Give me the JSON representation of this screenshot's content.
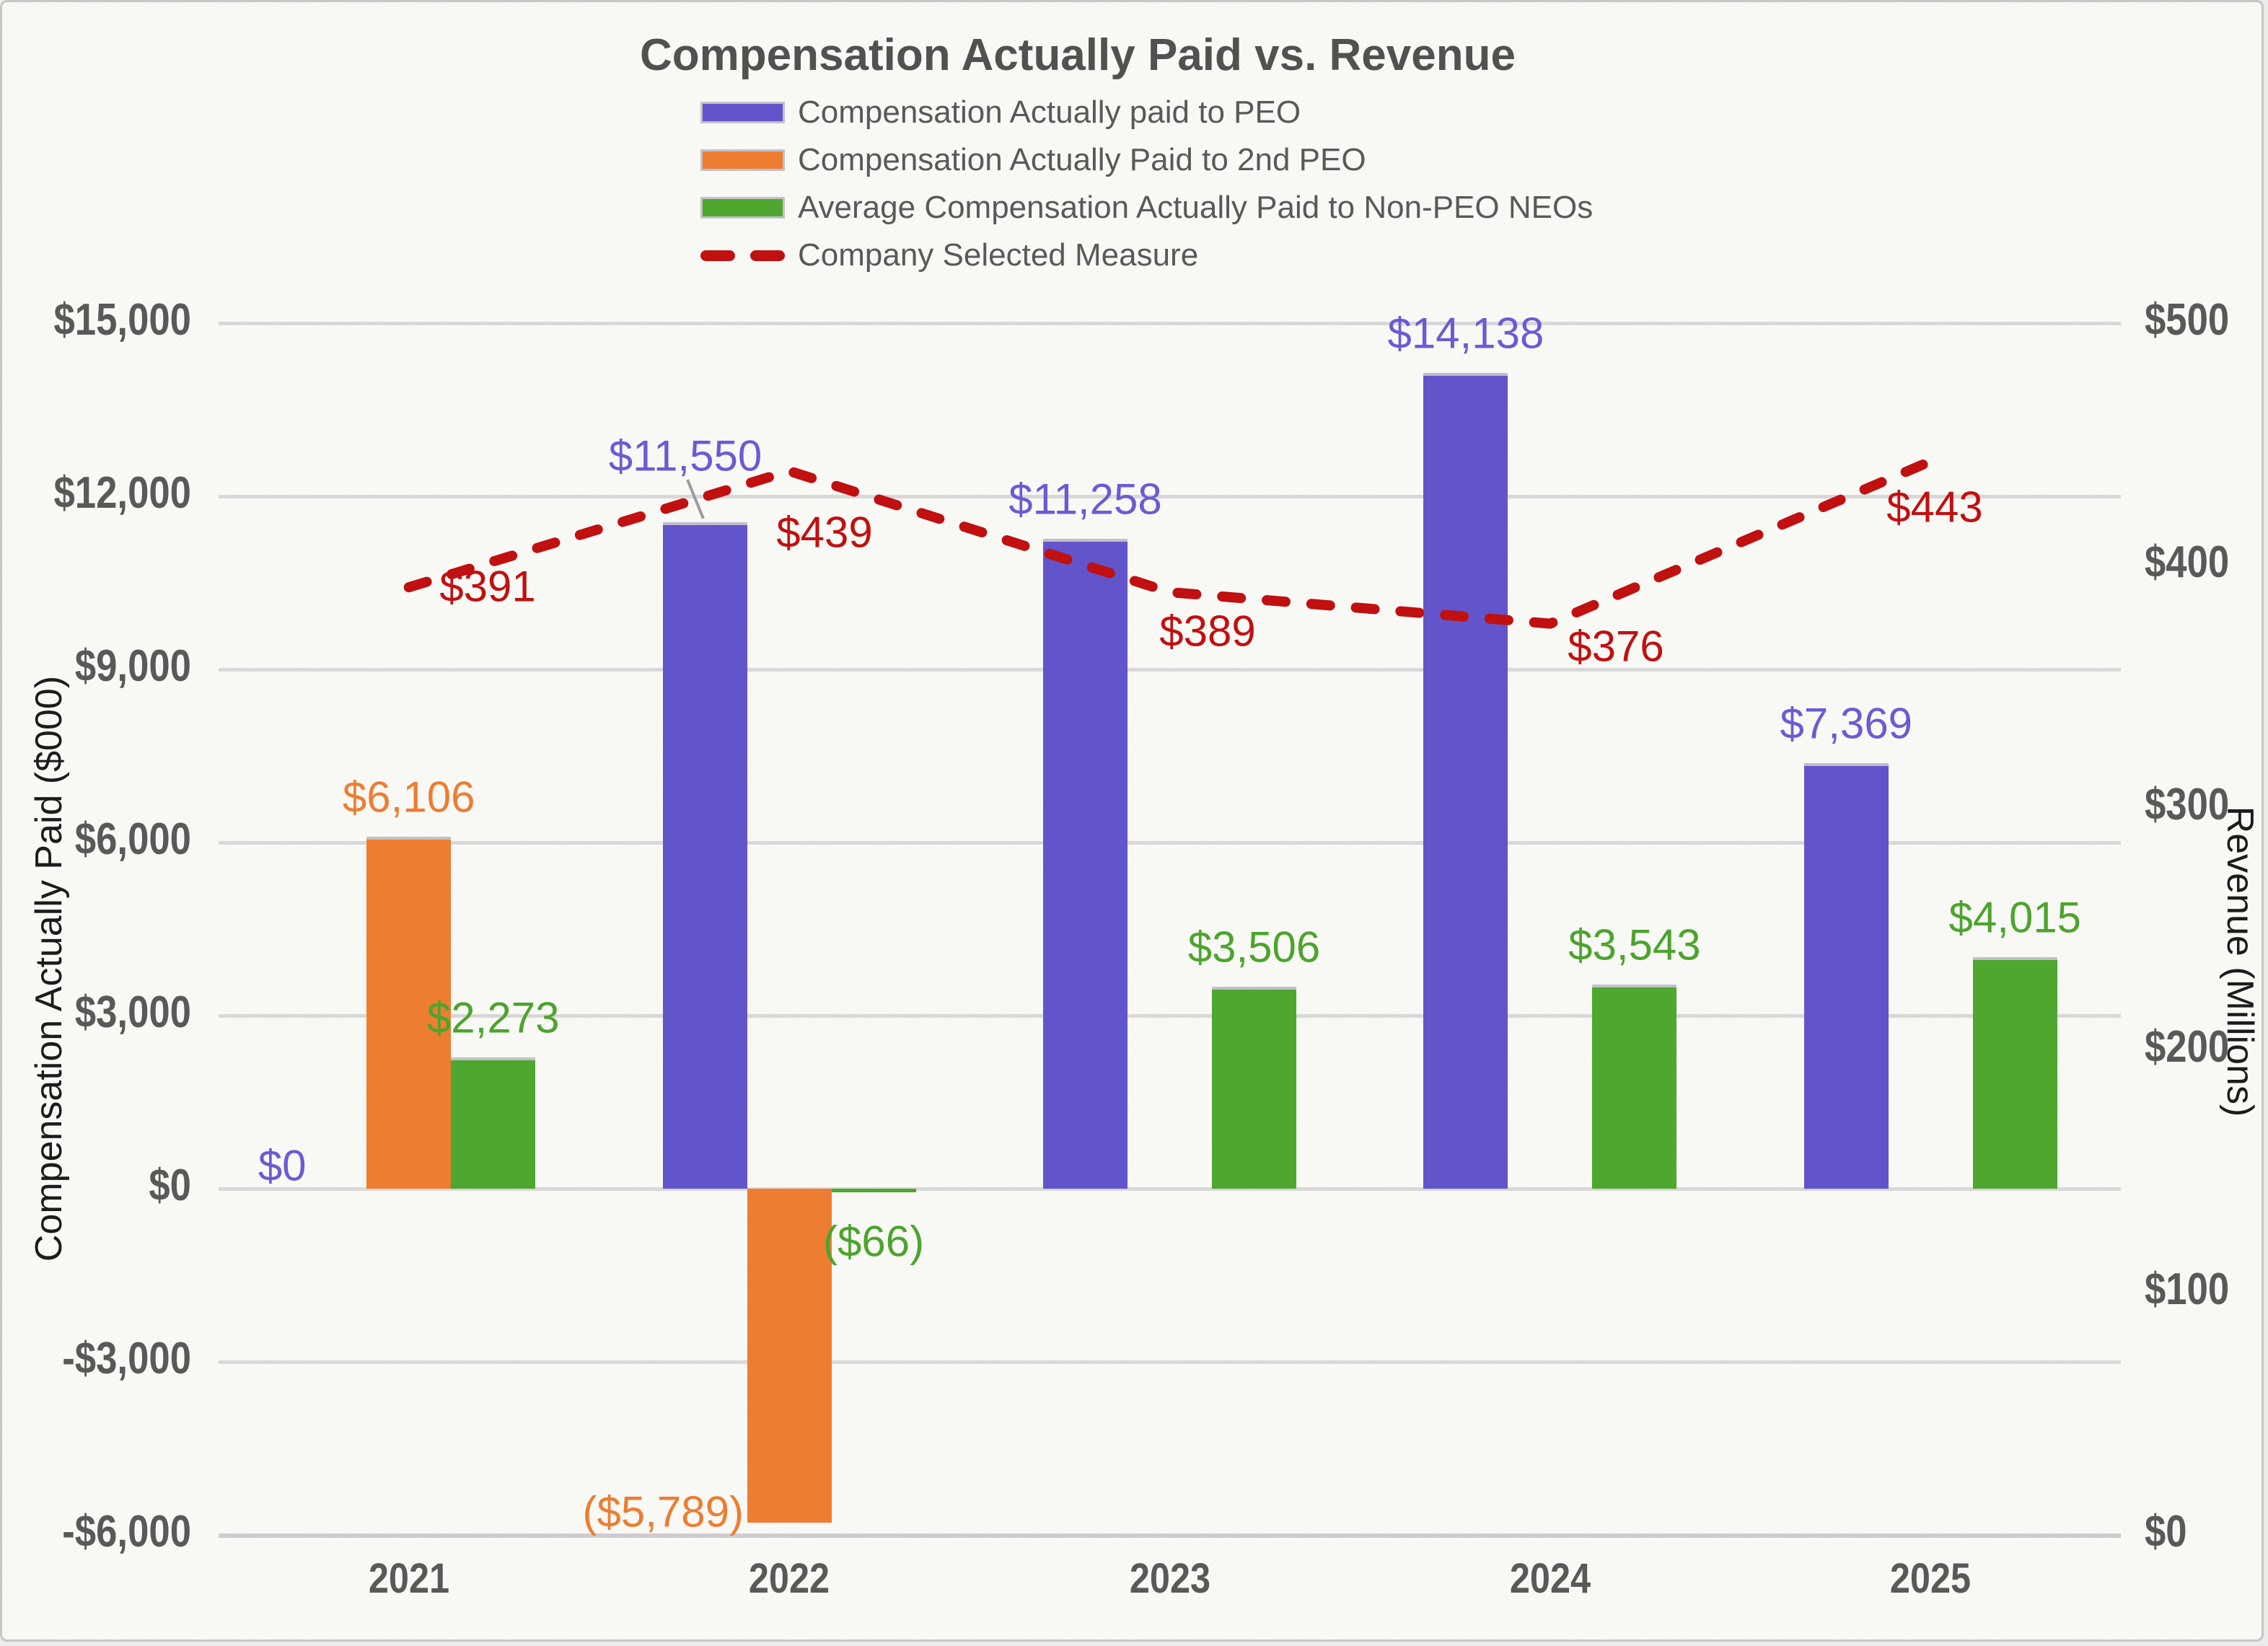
{
  "chart_data": {
    "type": "bar",
    "title": "Compensation Actually Paid vs. Revenue",
    "categories": [
      "2021",
      "2022",
      "2023",
      "2024",
      "2025"
    ],
    "series": [
      {
        "name": "Compensation Actually paid to PEO",
        "type": "bar",
        "axis": "left",
        "color": "#6254CA",
        "label_color": "#6A5BD4",
        "values": [
          0,
          11550,
          11258,
          14138,
          7369
        ],
        "value_labels": [
          "$0",
          "$11,550",
          "$11,258",
          "$14,138",
          "$7,369"
        ]
      },
      {
        "name": "Compensation Actually Paid to 2nd PEO",
        "type": "bar",
        "axis": "left",
        "color": "#ED7D31",
        "label_color": "#ED7D31",
        "values": [
          6106,
          -5789,
          null,
          null,
          null
        ],
        "value_labels": [
          "$6,106",
          "($5,789)",
          null,
          null,
          null
        ]
      },
      {
        "name": "Average Compensation Actually Paid to Non-PEO NEOs",
        "type": "bar",
        "axis": "left",
        "color": "#4EA72F",
        "label_color": "#4CA42D",
        "values": [
          2273,
          -66,
          3506,
          3543,
          4015
        ],
        "value_labels": [
          "$2,273",
          "($66)",
          "$3,506",
          "$3,543",
          "$4,015"
        ]
      },
      {
        "name": "Company Selected Measure",
        "type": "dashed_line",
        "axis": "right",
        "color": "#C01010",
        "label_color": "#C01010",
        "values": [
          391,
          439,
          389,
          376,
          443
        ],
        "value_labels": [
          "$391",
          "$439",
          "$389",
          "$376",
          "$443"
        ]
      }
    ],
    "left_axis": {
      "title": "Compensation Actually Paid ($000)",
      "min": -6000,
      "max": 15000,
      "step": 3000,
      "tick_values": [
        15000,
        12000,
        9000,
        6000,
        3000,
        0,
        -3000,
        -6000
      ],
      "tick_labels": [
        "$15,000",
        "$12,000",
        "$9,000",
        "$6,000",
        "$3,000",
        "$0",
        "-$3,000",
        "-$6,000"
      ]
    },
    "right_axis": {
      "title": "Revenue (Millions)",
      "min": 0,
      "max": 500,
      "step": 100,
      "tick_values": [
        500,
        400,
        300,
        200,
        100,
        0
      ],
      "tick_labels": [
        "$500",
        "$400",
        "$300",
        "$200",
        "$100",
        "$0"
      ]
    },
    "grid": true,
    "legend_position": "top-center"
  }
}
